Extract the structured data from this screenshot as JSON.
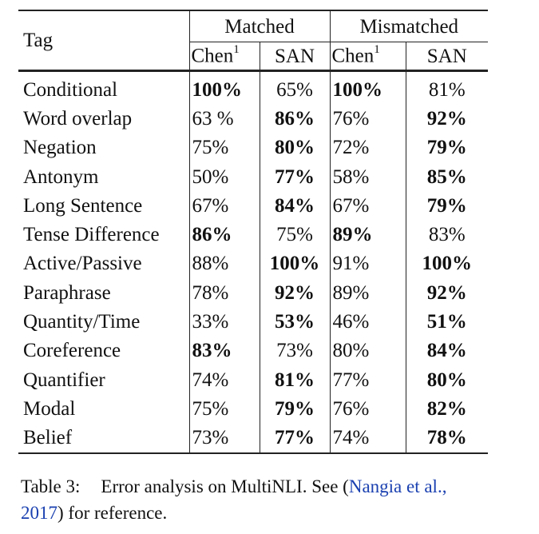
{
  "table": {
    "header": {
      "tag": "Tag",
      "groups": [
        "Matched",
        "Mismatched"
      ],
      "subcols": [
        "Chen",
        "SAN",
        "Chen",
        "SAN"
      ],
      "chen_sup": "1"
    },
    "rows": [
      {
        "tag": "Conditional",
        "v": [
          "100%",
          "65%",
          "100%",
          "81%"
        ],
        "bold": [
          true,
          false,
          true,
          false
        ]
      },
      {
        "tag": "Word overlap",
        "v": [
          "63 %",
          "86%",
          "76%",
          "92%"
        ],
        "bold": [
          false,
          true,
          false,
          true
        ]
      },
      {
        "tag": "Negation",
        "v": [
          "75%",
          "80%",
          "72%",
          "79%"
        ],
        "bold": [
          false,
          true,
          false,
          true
        ]
      },
      {
        "tag": "Antonym",
        "v": [
          "50%",
          "77%",
          "58%",
          "85%"
        ],
        "bold": [
          false,
          true,
          false,
          true
        ]
      },
      {
        "tag": "Long Sentence",
        "v": [
          "67%",
          "84%",
          "67%",
          "79%"
        ],
        "bold": [
          false,
          true,
          false,
          true
        ]
      },
      {
        "tag": "Tense Difference",
        "v": [
          "86%",
          "75%",
          "89%",
          "83%"
        ],
        "bold": [
          true,
          false,
          true,
          false
        ]
      },
      {
        "tag": "Active/Passive",
        "v": [
          "88%",
          "100%",
          "91%",
          "100%"
        ],
        "bold": [
          false,
          true,
          false,
          true
        ]
      },
      {
        "tag": "Paraphrase",
        "v": [
          "78%",
          "92%",
          "89%",
          "92%"
        ],
        "bold": [
          false,
          true,
          false,
          true
        ]
      },
      {
        "tag": "Quantity/Time",
        "v": [
          "33%",
          "53%",
          "46%",
          "51%"
        ],
        "bold": [
          false,
          true,
          false,
          true
        ]
      },
      {
        "tag": "Coreference",
        "v": [
          "83%",
          "73%",
          "80%",
          "84%"
        ],
        "bold": [
          true,
          false,
          false,
          true
        ]
      },
      {
        "tag": "Quantifier",
        "v": [
          "74%",
          "81%",
          "77%",
          "80%"
        ],
        "bold": [
          false,
          true,
          false,
          true
        ]
      },
      {
        "tag": "Modal",
        "v": [
          "75%",
          "79%",
          "76%",
          "82%"
        ],
        "bold": [
          false,
          true,
          false,
          true
        ]
      },
      {
        "tag": "Belief",
        "v": [
          "73%",
          "77%",
          "74%",
          "78%"
        ],
        "bold": [
          false,
          true,
          false,
          true
        ]
      }
    ]
  },
  "caption": {
    "label": "Table 3:",
    "text_before": "Error analysis on MultiNLI. See (",
    "cite": "Nangia et al., 2017",
    "text_after": ") for reference."
  }
}
